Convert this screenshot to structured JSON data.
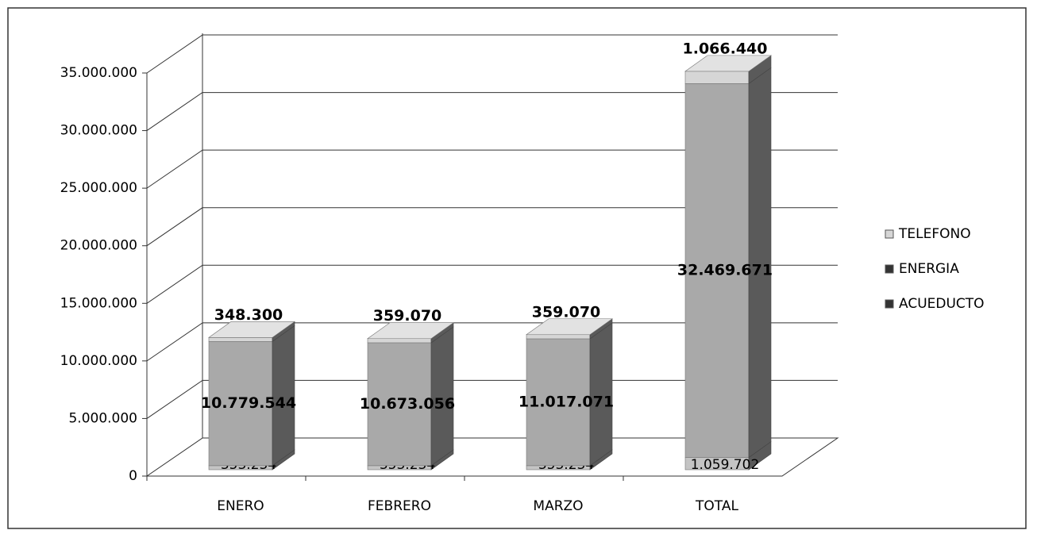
{
  "chart_data": {
    "type": "bar3d_stacked",
    "categories": [
      "ENERO",
      "FEBRERO",
      "MARZO",
      "TOTAL"
    ],
    "series": [
      {
        "name": "ACUEDUCTO",
        "color": "#c4c4c4",
        "values": [
          353234,
          353234,
          353234,
          1059702
        ],
        "value_labels": [
          "353.234",
          "353.234",
          "353.234",
          "1.059.702"
        ]
      },
      {
        "name": "ENERGIA",
        "color": "#a9a9a9",
        "values": [
          10779544,
          10673056,
          11017071,
          32469671
        ],
        "value_labels": [
          "10.779.544",
          "10.673.056",
          "11.017.071",
          "32.469.671"
        ]
      },
      {
        "name": "TELEFONO",
        "color": "#d6d6d6",
        "values": [
          348300,
          359070,
          359070,
          1066440
        ],
        "value_labels": [
          "348.300",
          "359.070",
          "359.070",
          "1.066.440"
        ]
      }
    ],
    "ylim": [
      0,
      35000000
    ],
    "yticks": [
      0,
      {
        "value": 5000000,
        "label": "5.000.000"
      },
      {
        "value": 10000000,
        "label": "10.000.000"
      },
      {
        "value": 15000000,
        "label": "15.000.000"
      },
      {
        "value": 20000000,
        "label": "20.000.000"
      },
      {
        "value": 25000000,
        "label": "25.000.000"
      },
      {
        "value": 30000000,
        "label": "30.000.000"
      },
      {
        "value": 35000000,
        "label": "35.000.000"
      }
    ],
    "grid": true,
    "legend": "right"
  }
}
